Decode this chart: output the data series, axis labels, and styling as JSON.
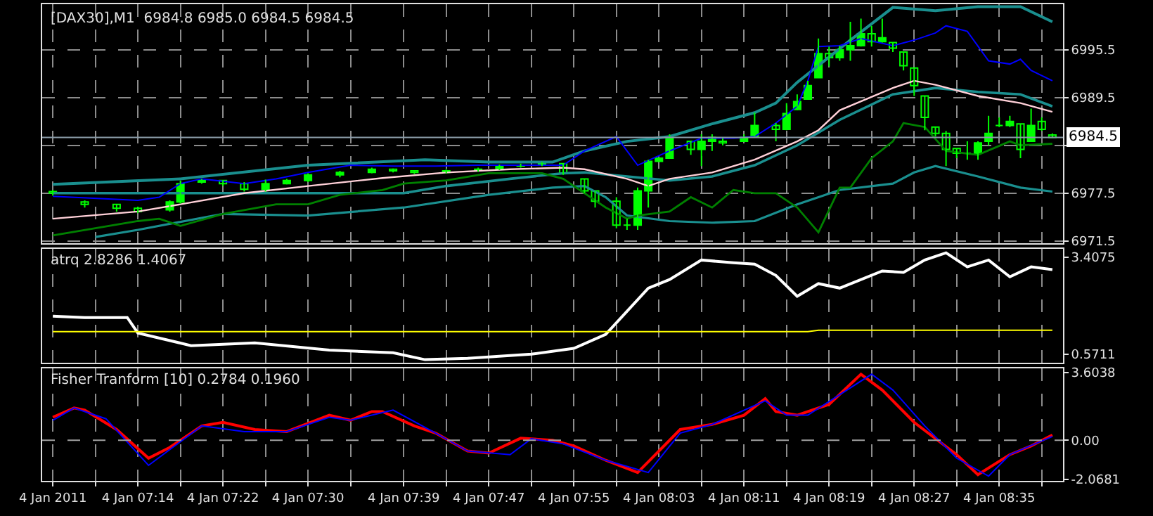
{
  "chart_data": [
    {
      "type": "candlestick",
      "title": "[DAX30],M1  6984.8 6985.0 6984.5 6984.5",
      "color": "#00ff00",
      "x": [
        "2011-01-04T07:06",
        "2011-01-04T07:09",
        "2011-01-04T07:12",
        "2011-01-04T07:14",
        "2011-01-04T07:17",
        "2011-01-04T07:18",
        "2011-01-04T07:20",
        "2011-01-04T07:22",
        "2011-01-04T07:24",
        "2011-01-04T07:26",
        "2011-01-04T07:28",
        "2011-01-04T07:30",
        "2011-01-04T07:33",
        "2011-01-04T07:36",
        "2011-01-04T07:38",
        "2011-01-04T07:40",
        "2011-01-04T07:43",
        "2011-01-04T07:46",
        "2011-01-04T07:48",
        "2011-01-04T07:50",
        "2011-01-04T07:52",
        "2011-01-04T07:54",
        "2011-01-04T07:56",
        "2011-01-04T07:57",
        "2011-01-04T07:59",
        "2011-01-04T08:00",
        "2011-01-04T08:01",
        "2011-01-04T08:02",
        "2011-01-04T08:03",
        "2011-01-04T08:04",
        "2011-01-04T08:06",
        "2011-01-04T08:07",
        "2011-01-04T08:08",
        "2011-01-04T08:09",
        "2011-01-04T08:11",
        "2011-01-04T08:12",
        "2011-01-04T08:14",
        "2011-01-04T08:15",
        "2011-01-04T08:16",
        "2011-01-04T08:17",
        "2011-01-04T08:18",
        "2011-01-04T08:19",
        "2011-01-04T08:20",
        "2011-01-04T08:21",
        "2011-01-04T08:22",
        "2011-01-04T08:23",
        "2011-01-04T08:24",
        "2011-01-04T08:25",
        "2011-01-04T08:26",
        "2011-01-04T08:27",
        "2011-01-04T08:28",
        "2011-01-04T08:29",
        "2011-01-04T08:30",
        "2011-01-04T08:31",
        "2011-01-04T08:32",
        "2011-01-04T08:33",
        "2011-01-04T08:34",
        "2011-01-04T08:35",
        "2011-01-04T08:36",
        "2011-01-04T08:37",
        "2011-01-04T08:38",
        "2011-01-04T08:39",
        "2011-01-04T08:40"
      ],
      "ohlc": [
        [
          6977.7,
          6977.9,
          6977.2,
          6977.5
        ],
        [
          6976.4,
          6976.6,
          6975.7,
          6976.1
        ],
        [
          6976.1,
          6976.1,
          6975.2,
          6975.6
        ],
        [
          6975.6,
          6975.8,
          6975.0,
          6975.2
        ],
        [
          6975.4,
          6976.6,
          6975.2,
          6976.4
        ],
        [
          6976.4,
          6979.1,
          6976.2,
          6978.7
        ],
        [
          6978.9,
          6979.3,
          6978.7,
          6979.1
        ],
        [
          6979.1,
          6979.1,
          6978.4,
          6978.7
        ],
        [
          6978.7,
          6978.9,
          6977.7,
          6978.0
        ],
        [
          6978.0,
          6979.2,
          6977.7,
          6978.7
        ],
        [
          6978.7,
          6979.3,
          6978.6,
          6979.1
        ],
        [
          6979.1,
          6980.0,
          6978.9,
          6979.8
        ],
        [
          6979.8,
          6980.3,
          6979.5,
          6980.1
        ],
        [
          6980.1,
          6980.7,
          6980.0,
          6980.5
        ],
        [
          6980.5,
          6980.6,
          6980.1,
          6980.3
        ],
        [
          6980.3,
          6980.3,
          6979.9,
          6980.1
        ],
        [
          6980.1,
          6980.5,
          6980.0,
          6980.3
        ],
        [
          6980.3,
          6980.7,
          6980.2,
          6980.5
        ],
        [
          6980.5,
          6981.1,
          6980.4,
          6980.9
        ],
        [
          6980.9,
          6981.2,
          6980.7,
          6981.0
        ],
        [
          6981.0,
          6981.4,
          6980.9,
          6981.2
        ],
        [
          6981.2,
          6981.2,
          6979.8,
          6980.0
        ],
        [
          6979.3,
          6979.3,
          6977.5,
          6977.8
        ],
        [
          6977.8,
          6977.8,
          6975.7,
          6976.5
        ],
        [
          6976.5,
          6977.0,
          6973.1,
          6973.5
        ],
        [
          6973.5,
          6974.3,
          6972.9,
          6973.5
        ],
        [
          6973.5,
          6978.2,
          6972.9,
          6977.8
        ],
        [
          6977.8,
          6981.7,
          6975.7,
          6981.5
        ],
        [
          6981.5,
          6981.9,
          6981.4,
          6981.9
        ],
        [
          6981.9,
          6984.9,
          6981.9,
          6984.5
        ],
        [
          6984.0,
          6984.0,
          6982.3,
          6983.0
        ],
        [
          6983.0,
          6984.9,
          6980.9,
          6984.0
        ],
        [
          6984.0,
          6984.9,
          6982.8,
          6984.5
        ],
        [
          6984.0,
          6984.4,
          6983.5,
          6983.8
        ],
        [
          6984.0,
          6984.9,
          6984.0,
          6984.5
        ],
        [
          6984.6,
          6987.6,
          6984.6,
          6986.0
        ],
        [
          6986.0,
          6986.3,
          6984.0,
          6985.5
        ],
        [
          6985.5,
          6988.8,
          6985.4,
          6987.5
        ],
        [
          6988.0,
          6989.9,
          6987.9,
          6989.0
        ],
        [
          6989.3,
          6991.6,
          6989.3,
          6991.0
        ],
        [
          6992.0,
          6996.9,
          6992.0,
          6995.0
        ],
        [
          6995.0,
          6995.9,
          6993.4,
          6994.5
        ],
        [
          6994.5,
          6996.0,
          6994.1,
          6995.5
        ],
        [
          6995.5,
          6999.0,
          6994.1,
          6996.0
        ],
        [
          6996.0,
          6999.4,
          6995.9,
          6997.5
        ],
        [
          6997.5,
          6998.5,
          6995.9,
          6996.5
        ],
        [
          6996.5,
          6999.4,
          6996.4,
          6997.0
        ],
        [
          6996.4,
          6996.4,
          6995.2,
          6995.7
        ],
        [
          6995.2,
          6995.2,
          6992.9,
          6993.5
        ],
        [
          6993.2,
          6993.2,
          6989.7,
          6991.0
        ],
        [
          6989.7,
          6989.7,
          6985.4,
          6987.0
        ],
        [
          6985.8,
          6985.8,
          6984.6,
          6985.0
        ],
        [
          6985.0,
          6985.3,
          6980.9,
          6983.0
        ],
        [
          6983.1,
          6983.1,
          6981.9,
          6982.5
        ],
        [
          6982.5,
          6984.0,
          6981.7,
          6982.5
        ],
        [
          6982.5,
          6984.0,
          6981.7,
          6983.8
        ],
        [
          6984.0,
          6987.2,
          6983.5,
          6985.0
        ],
        [
          6986.0,
          6987.0,
          6985.8,
          6986.0
        ],
        [
          6986.0,
          6987.2,
          6985.8,
          6986.5
        ],
        [
          6986.2,
          6986.2,
          6981.9,
          6983.0
        ],
        [
          6984.0,
          6988.1,
          6984.0,
          6986.0
        ],
        [
          6986.5,
          6987.0,
          6985.3,
          6985.5
        ],
        [
          6984.8,
          6985.0,
          6984.5,
          6984.5
        ]
      ],
      "series": [
        {
          "type": "line",
          "color": "#1a8f8f",
          "x": [
            "2011-01-04T07:06",
            "2011-01-04T07:18",
            "2011-01-04T07:30",
            "2011-01-04T07:41",
            "2011-01-04T07:47",
            "2011-01-04T07:53",
            "2011-01-04T07:56",
            "2011-01-04T08:00",
            "2011-01-04T08:04",
            "2011-01-04T08:08",
            "2011-01-04T08:12",
            "2011-01-04T08:14",
            "2011-01-04T08:16",
            "2011-01-04T08:21",
            "2011-01-04T08:25",
            "2011-01-04T08:29",
            "2011-01-04T08:33",
            "2011-01-04T08:37",
            "2011-01-04T08:40"
          ],
          "values": [
            6978.6,
            6979.3,
            6981.0,
            6981.7,
            6981.4,
            6981.4,
            6982.8,
            6984.0,
            6984.6,
            6986.2,
            6987.6,
            6988.8,
            6991.4,
            6996.7,
            7000.8,
            7000.4,
            7000.9,
            7000.9,
            6999.0
          ]
        },
        {
          "type": "line",
          "color": "#1a8f8f",
          "x": [
            "2011-01-04T07:06",
            "2011-01-04T07:22",
            "2011-01-04T07:39",
            "2011-01-04T07:43",
            "2011-01-04T07:49",
            "2011-01-04T07:54",
            "2011-01-04T07:56",
            "2011-01-04T08:00",
            "2011-01-04T08:04",
            "2011-01-04T08:08",
            "2011-01-04T08:12",
            "2011-01-04T08:16",
            "2011-01-04T08:20",
            "2011-01-04T08:25",
            "2011-01-04T08:29",
            "2011-01-04T08:33",
            "2011-01-04T08:37",
            "2011-01-04T08:40"
          ],
          "values": [
            6977.5,
            6977.5,
            6977.5,
            6978.4,
            6979.3,
            6980.0,
            6980.1,
            6979.6,
            6979.1,
            6979.6,
            6981.0,
            6983.5,
            6986.7,
            6989.9,
            6990.7,
            6990.2,
            6989.9,
            6988.4
          ]
        },
        {
          "type": "line",
          "color": "#1a8f8f",
          "x": [
            "2011-01-04T07:10",
            "2011-01-04T07:14",
            "2011-01-04T07:22",
            "2011-01-04T07:30",
            "2011-01-04T07:39",
            "2011-01-04T07:47",
            "2011-01-04T07:53",
            "2011-01-04T07:56",
            "2011-01-04T07:58",
            "2011-01-04T08:00",
            "2011-01-04T08:04",
            "2011-01-04T08:08",
            "2011-01-04T08:12",
            "2011-01-04T08:16",
            "2011-01-04T08:20",
            "2011-01-04T08:25",
            "2011-01-04T08:27",
            "2011-01-04T08:29",
            "2011-01-04T08:33",
            "2011-01-04T08:37",
            "2011-01-04T08:40"
          ],
          "values": [
            6972.0,
            6972.9,
            6974.9,
            6974.7,
            6975.7,
            6977.3,
            6978.2,
            6978.4,
            6977.0,
            6974.7,
            6974.0,
            6973.8,
            6974.0,
            6976.1,
            6977.9,
            6978.7,
            6980.1,
            6980.9,
            6979.6,
            6978.2,
            6977.7
          ]
        },
        {
          "type": "line",
          "color": "#008000",
          "x": [
            "2011-01-04T07:06",
            "2011-01-04T07:14",
            "2011-01-04T07:16",
            "2011-01-04T07:18",
            "2011-01-04T07:22",
            "2011-01-04T07:27",
            "2011-01-04T07:30",
            "2011-01-04T07:33",
            "2011-01-04T07:37",
            "2011-01-04T07:39",
            "2011-01-04T07:43",
            "2011-01-04T07:47",
            "2011-01-04T07:52",
            "2011-01-04T07:54",
            "2011-01-04T07:58",
            "2011-01-04T08:00",
            "2011-01-04T08:01",
            "2011-01-04T08:04",
            "2011-01-04T08:06",
            "2011-01-04T08:08",
            "2011-01-04T08:10",
            "2011-01-04T08:12",
            "2011-01-04T08:14",
            "2011-01-04T08:16",
            "2011-01-04T08:18",
            "2011-01-04T08:20",
            "2011-01-04T08:21",
            "2011-01-04T08:23",
            "2011-01-04T08:25",
            "2011-01-04T08:26",
            "2011-01-04T08:28",
            "2011-01-04T08:30",
            "2011-01-04T08:33",
            "2011-01-04T08:36",
            "2011-01-04T08:37",
            "2011-01-04T08:40"
          ],
          "values": [
            6972.2,
            6974.0,
            6974.3,
            6973.4,
            6974.9,
            6976.1,
            6976.1,
            6977.3,
            6977.9,
            6978.7,
            6979.1,
            6980.0,
            6980.0,
            6979.3,
            6975.7,
            6974.3,
            6974.7,
            6975.2,
            6977.0,
            6975.7,
            6977.9,
            6977.5,
            6977.5,
            6975.7,
            6972.6,
            6978.2,
            6978.2,
            6981.9,
            6984.0,
            6986.3,
            6985.8,
            6982.8,
            6982.3,
            6984.0,
            6983.5,
            6983.7
          ]
        },
        {
          "type": "line",
          "color": "#ffd0d8",
          "x": [
            "2011-01-04T07:06",
            "2011-01-04T07:14",
            "2011-01-04T07:18",
            "2011-01-04T07:24",
            "2011-01-04T07:30",
            "2011-01-04T07:37",
            "2011-01-04T07:43",
            "2011-01-04T07:49",
            "2011-01-04T07:54",
            "2011-01-04T07:56",
            "2011-01-04T08:00",
            "2011-01-04T08:02",
            "2011-01-04T08:04",
            "2011-01-04T08:08",
            "2011-01-04T08:12",
            "2011-01-04T08:16",
            "2011-01-04T08:18",
            "2011-01-04T08:20",
            "2011-01-04T08:25",
            "2011-01-04T08:27",
            "2011-01-04T08:29",
            "2011-01-04T08:33",
            "2011-01-04T08:37",
            "2011-01-04T08:40"
          ],
          "values": [
            6974.3,
            6975.2,
            6976.1,
            6977.5,
            6978.4,
            6979.4,
            6980.1,
            6980.5,
            6980.7,
            6980.5,
            6979.3,
            6978.4,
            6979.3,
            6980.1,
            6981.7,
            6984.0,
            6985.4,
            6987.9,
            6990.7,
            6991.6,
            6991.1,
            6989.7,
            6988.8,
            6987.7
          ]
        },
        {
          "type": "line",
          "color": "#0000ff",
          "x": [
            "2011-01-04T07:06",
            "2011-01-04T07:14",
            "2011-01-04T07:16",
            "2011-01-04T07:18",
            "2011-01-04T07:20",
            "2011-01-04T07:24",
            "2011-01-04T07:27",
            "2011-01-04T07:30",
            "2011-01-04T07:34",
            "2011-01-04T07:38",
            "2011-01-04T07:42",
            "2011-01-04T07:46",
            "2011-01-04T07:51",
            "2011-01-04T07:54",
            "2011-01-04T07:56",
            "2011-01-04T07:59",
            "2011-01-04T08:01",
            "2011-01-04T08:04",
            "2011-01-04T08:07",
            "2011-01-04T08:10",
            "2011-01-04T08:12",
            "2011-01-04T08:14",
            "2011-01-04T08:16",
            "2011-01-04T08:17",
            "2011-01-04T08:18",
            "2011-01-04T08:20",
            "2011-01-04T08:22",
            "2011-01-04T08:25",
            "2011-01-04T08:27",
            "2011-01-04T08:29",
            "2011-01-04T08:30",
            "2011-01-04T08:32",
            "2011-01-04T08:34",
            "2011-01-04T08:36",
            "2011-01-04T08:37",
            "2011-01-04T08:38",
            "2011-01-04T08:40"
          ],
          "values": [
            6977.1,
            6976.6,
            6977.0,
            6978.7,
            6979.3,
            6978.7,
            6979.3,
            6980.1,
            6981.0,
            6980.9,
            6980.9,
            6981.0,
            6981.0,
            6981.0,
            6982.8,
            6984.6,
            6981.0,
            6982.8,
            6984.4,
            6984.4,
            6984.6,
            6986.3,
            6988.4,
            6991.6,
            6995.9,
            6996.0,
            6996.9,
            6996.0,
            6996.7,
            6997.6,
            6998.5,
            6997.8,
            6994.1,
            6993.7,
            6994.3,
            6992.9,
            6991.6
          ]
        }
      ],
      "ylim": [
        6971.2,
        7001.2
      ],
      "yticks": [
        6971.5,
        6977.5,
        {
          "value": 6983.5,
          "label": null
        },
        6989.5,
        6995.5
      ],
      "xlim": [
        "2011-01-04T07:05",
        "2011-01-04T08:41"
      ],
      "xticks": [
        {
          "value": "2011-01-04T07:06",
          "label": null
        },
        {
          "value": "2011-01-04T07:10",
          "label": null
        },
        {
          "value": "2011-01-04T07:14",
          "label": null
        },
        {
          "value": "2011-01-04T07:18",
          "label": null
        },
        {
          "value": "2011-01-04T07:22",
          "label": null
        },
        {
          "value": "2011-01-04T07:26",
          "label": null
        },
        {
          "value": "2011-01-04T07:30",
          "label": null
        },
        {
          "value": "2011-01-04T07:34",
          "label": null
        },
        {
          "value": "2011-01-04T07:39",
          "label": null
        },
        {
          "value": "2011-01-04T07:43",
          "label": null
        },
        {
          "value": "2011-01-04T07:47",
          "label": null
        },
        {
          "value": "2011-01-04T07:51",
          "label": null
        },
        {
          "value": "2011-01-04T07:55",
          "label": null
        },
        {
          "value": "2011-01-04T07:59",
          "label": null
        },
        {
          "value": "2011-01-04T08:03",
          "label": null
        },
        {
          "value": "2011-01-04T08:07",
          "label": null
        },
        {
          "value": "2011-01-04T08:11",
          "label": null
        },
        {
          "value": "2011-01-04T08:15",
          "label": null
        },
        {
          "value": "2011-01-04T08:19",
          "label": null
        },
        {
          "value": "2011-01-04T08:23",
          "label": null
        },
        {
          "value": "2011-01-04T08:27",
          "label": null
        },
        {
          "value": "2011-01-04T08:31",
          "label": null
        },
        {
          "value": "2011-01-04T08:35",
          "label": null
        },
        {
          "value": "2011-01-04T08:39",
          "label": null
        }
      ],
      "ref_lines": [
        {
          "axis": "y",
          "value": 6984.5,
          "label": "6984.5",
          "color": "#8a9ba8"
        }
      ],
      "grid": true,
      "tick_labels": "y"
    },
    {
      "type": "line",
      "title": "atrq 2.8286 1.4067",
      "series": [
        {
          "color": "#ffffff",
          "x": [
            "2011-01-04T07:06",
            "2011-01-04T07:09",
            "2011-01-04T07:13",
            "2011-01-04T07:14",
            "2011-01-04T07:19",
            "2011-01-04T07:25",
            "2011-01-04T07:32",
            "2011-01-04T07:38",
            "2011-01-04T07:41",
            "2011-01-04T07:45",
            "2011-01-04T07:51",
            "2011-01-04T07:55",
            "2011-01-04T07:58",
            "2011-01-04T08:02",
            "2011-01-04T08:04",
            "2011-01-04T08:07",
            "2011-01-04T08:10",
            "2011-01-04T08:12",
            "2011-01-04T08:14",
            "2011-01-04T08:16",
            "2011-01-04T08:18",
            "2011-01-04T08:20",
            "2011-01-04T08:24",
            "2011-01-04T08:26",
            "2011-01-04T08:28",
            "2011-01-04T08:30",
            "2011-01-04T08:32",
            "2011-01-04T08:34",
            "2011-01-04T08:36",
            "2011-01-04T08:38",
            "2011-01-04T08:40"
          ],
          "values": [
            1.68,
            1.64,
            1.64,
            1.19,
            0.82,
            0.9,
            0.69,
            0.61,
            0.41,
            0.45,
            0.57,
            0.74,
            1.15,
            2.5,
            2.75,
            3.32,
            3.24,
            3.2,
            2.87,
            2.26,
            2.63,
            2.5,
            3.0,
            2.96,
            3.32,
            3.53,
            3.12,
            3.32,
            2.83,
            3.12,
            3.04
          ]
        },
        {
          "color": "#ffff00",
          "x": [
            "2011-01-04T07:06",
            "2011-01-04T08:17",
            "2011-01-04T08:18",
            "2011-01-04T08:40"
          ],
          "values": [
            1.23,
            1.23,
            1.27,
            1.27
          ]
        }
      ],
      "ylim": [
        0.32,
        3.65
      ],
      "yticks": [
        0.5711,
        3.4075
      ],
      "xlim": [
        "2011-01-04T07:05",
        "2011-01-04T08:41"
      ],
      "xticks": [
        {
          "value": "2011-01-04T07:06",
          "label": null
        },
        {
          "value": "2011-01-04T07:10",
          "label": null
        },
        {
          "value": "2011-01-04T07:14",
          "label": null
        },
        {
          "value": "2011-01-04T07:18",
          "label": null
        },
        {
          "value": "2011-01-04T07:22",
          "label": null
        },
        {
          "value": "2011-01-04T07:26",
          "label": null
        },
        {
          "value": "2011-01-04T07:30",
          "label": null
        },
        {
          "value": "2011-01-04T07:34",
          "label": null
        },
        {
          "value": "2011-01-04T07:39",
          "label": null
        },
        {
          "value": "2011-01-04T07:43",
          "label": null
        },
        {
          "value": "2011-01-04T07:47",
          "label": null
        },
        {
          "value": "2011-01-04T07:51",
          "label": null
        },
        {
          "value": "2011-01-04T07:55",
          "label": null
        },
        {
          "value": "2011-01-04T07:59",
          "label": null
        },
        {
          "value": "2011-01-04T08:03",
          "label": null
        },
        {
          "value": "2011-01-04T08:07",
          "label": null
        },
        {
          "value": "2011-01-04T08:11",
          "label": null
        },
        {
          "value": "2011-01-04T08:15",
          "label": null
        },
        {
          "value": "2011-01-04T08:19",
          "label": null
        },
        {
          "value": "2011-01-04T08:23",
          "label": null
        },
        {
          "value": "2011-01-04T08:27",
          "label": null
        },
        {
          "value": "2011-01-04T08:31",
          "label": null
        },
        {
          "value": "2011-01-04T08:35",
          "label": null
        },
        {
          "value": "2011-01-04T08:39",
          "label": null
        }
      ],
      "grid": "x",
      "tick_labels": "y"
    },
    {
      "type": "line",
      "title": "Fisher Tranform [10] 0.2784 0.1960",
      "series": [
        {
          "color": "#ff0000",
          "x": [
            "2011-01-04T07:06",
            "2011-01-04T07:08",
            "2011-01-04T07:09",
            "2011-01-04T07:12",
            "2011-01-04T07:15",
            "2011-01-04T07:17",
            "2011-01-04T07:20",
            "2011-01-04T07:22",
            "2011-01-04T07:25",
            "2011-01-04T07:28",
            "2011-01-04T07:32",
            "2011-01-04T07:34",
            "2011-01-04T07:36",
            "2011-01-04T07:37",
            "2011-01-04T07:40",
            "2011-01-04T07:42",
            "2011-01-04T07:45",
            "2011-01-04T07:47",
            "2011-01-04T07:50",
            "2011-01-04T07:53",
            "2011-01-04T07:55",
            "2011-01-04T07:58",
            "2011-01-04T08:01",
            "2011-01-04T08:02",
            "2011-01-04T08:05",
            "2011-01-04T08:08",
            "2011-01-04T08:11",
            "2011-01-04T08:13",
            "2011-01-04T08:14",
            "2011-01-04T08:16",
            "2011-01-04T08:19",
            "2011-01-04T08:22",
            "2011-01-04T08:24",
            "2011-01-04T08:27",
            "2011-01-04T08:31",
            "2011-01-04T08:33",
            "2011-01-04T08:36",
            "2011-01-04T08:38",
            "2011-01-04T08:40"
          ],
          "values": [
            1.22,
            1.71,
            1.6,
            0.57,
            -0.95,
            -0.38,
            0.76,
            0.95,
            0.57,
            0.46,
            1.33,
            1.06,
            1.52,
            1.52,
            0.76,
            0.38,
            -0.57,
            -0.68,
            0.11,
            0.0,
            -0.3,
            -1.06,
            -1.71,
            -1.14,
            0.57,
            0.84,
            1.33,
            2.21,
            1.52,
            1.33,
            1.9,
            3.5,
            2.66,
            0.95,
            -0.76,
            -1.82,
            -0.76,
            -0.3,
            0.28
          ]
        },
        {
          "color": "#0000ff",
          "x": [
            "2011-01-04T07:06",
            "2011-01-04T07:08",
            "2011-01-04T07:11",
            "2011-01-04T07:15",
            "2011-01-04T07:20",
            "2011-01-04T07:24",
            "2011-01-04T07:28",
            "2011-01-04T07:32",
            "2011-01-04T07:34",
            "2011-01-04T07:38",
            "2011-01-04T07:42",
            "2011-01-04T07:45",
            "2011-01-04T07:49",
            "2011-01-04T07:51",
            "2011-01-04T07:54",
            "2011-01-04T07:58",
            "2011-01-04T08:02",
            "2011-01-04T08:05",
            "2011-01-04T08:08",
            "2011-01-04T08:13",
            "2011-01-04T08:15",
            "2011-01-04T08:17",
            "2011-01-04T08:23",
            "2011-01-04T08:25",
            "2011-01-04T08:28",
            "2011-01-04T08:31",
            "2011-01-04T08:34",
            "2011-01-04T08:36",
            "2011-01-04T08:40"
          ],
          "values": [
            1.06,
            1.71,
            1.14,
            -1.33,
            0.76,
            0.46,
            0.46,
            1.22,
            1.06,
            1.6,
            0.38,
            -0.57,
            -0.76,
            0.08,
            -0.19,
            -1.06,
            -1.71,
            0.38,
            0.84,
            2.09,
            1.33,
            1.33,
            3.5,
            2.66,
            0.76,
            -0.95,
            -1.9,
            -0.76,
            0.2
          ]
        }
      ],
      "ylim": [
        -2.15,
        3.8
      ],
      "yticks": [
        -2.0681,
        {
          "value": 0,
          "label": "0.00"
        },
        3.6038
      ],
      "xlim": [
        "2011-01-04T07:05",
        "2011-01-04T08:41"
      ],
      "xticks": [
        {
          "value": "2011-01-04T07:06",
          "label": "4 Jan 2011"
        },
        {
          "value": "2011-01-04T07:10",
          "label": null
        },
        {
          "value": "2011-01-04T07:14",
          "label": "4 Jan 07:14"
        },
        {
          "value": "2011-01-04T07:18",
          "label": null
        },
        {
          "value": "2011-01-04T07:22",
          "label": "4 Jan 07:22"
        },
        {
          "value": "2011-01-04T07:26",
          "label": null
        },
        {
          "value": "2011-01-04T07:30",
          "label": "4 Jan 07:30"
        },
        {
          "value": "2011-01-04T07:34",
          "label": null
        },
        {
          "value": "2011-01-04T07:39",
          "label": "4 Jan 07:39"
        },
        {
          "value": "2011-01-04T07:43",
          "label": null
        },
        {
          "value": "2011-01-04T07:47",
          "label": "4 Jan 07:47"
        },
        {
          "value": "2011-01-04T07:51",
          "label": null
        },
        {
          "value": "2011-01-04T07:55",
          "label": "4 Jan 07:55"
        },
        {
          "value": "2011-01-04T07:59",
          "label": null
        },
        {
          "value": "2011-01-04T08:03",
          "label": "4 Jan 08:03"
        },
        {
          "value": "2011-01-04T08:07",
          "label": null
        },
        {
          "value": "2011-01-04T08:11",
          "label": "4 Jan 08:11"
        },
        {
          "value": "2011-01-04T08:15",
          "label": null
        },
        {
          "value": "2011-01-04T08:19",
          "label": "4 Jan 08:19"
        },
        {
          "value": "2011-01-04T08:23",
          "label": null
        },
        {
          "value": "2011-01-04T08:27",
          "label": "4 Jan 08:27"
        },
        {
          "value": "2011-01-04T08:31",
          "label": null
        },
        {
          "value": "2011-01-04T08:35",
          "label": "4 Jan 08:35"
        },
        {
          "value": "2011-01-04T08:39",
          "label": null
        }
      ],
      "ref_lines": [
        {
          "axis": "y",
          "value": 0,
          "color": "#a0a0a0",
          "line_style": "dashed"
        }
      ],
      "grid": "x"
    }
  ]
}
